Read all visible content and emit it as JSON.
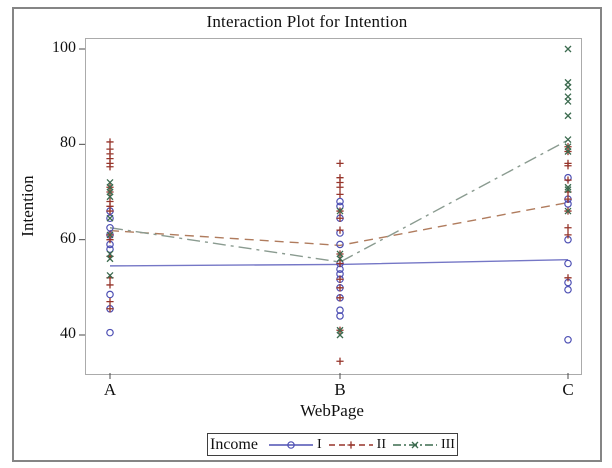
{
  "page": {
    "title": "Interaction Plot for Intention"
  },
  "axes": {
    "x": {
      "label": "WebPage",
      "categories": [
        "A",
        "B",
        "C"
      ]
    },
    "y": {
      "label": "Intention",
      "ticks": [
        40,
        60,
        80,
        100
      ]
    }
  },
  "legend": {
    "title": "Income",
    "entries": [
      {
        "label": "I"
      },
      {
        "label": "II"
      },
      {
        "label": "III"
      }
    ]
  },
  "chart_data": {
    "type": "line",
    "title": "Interaction Plot for Intention",
    "xlabel": "WebPage",
    "ylabel": "Intention",
    "categories": [
      "A",
      "B",
      "C"
    ],
    "ylim": [
      33,
      103
    ],
    "yticks": [
      40,
      60,
      80,
      100
    ],
    "grid": false,
    "legend_position": "bottom",
    "legend_title": "Income",
    "description": "Interaction plot: per-group mean lines for Income levels I/II/III across WebPage A/B/C, with raw Intention scatter points overlaid at each category.",
    "series": [
      {
        "name": "I",
        "marker": "circle",
        "line_style": "solid",
        "color": "#4E50B4",
        "line_color": "#7577C6",
        "means": [
          54.5,
          54.8,
          55.8
        ],
        "points": {
          "A": [
            66,
            64.5,
            62.5,
            61,
            59,
            58,
            48.5,
            45.5,
            40.5
          ],
          "B": [
            68,
            67,
            64.5,
            61.4,
            59,
            55,
            53.8,
            52.8,
            51.7,
            49.9,
            47.8,
            45.2,
            44
          ],
          "C": [
            73,
            68.5,
            67.5,
            60,
            55,
            51,
            49.5,
            39
          ]
        }
      },
      {
        "name": "II",
        "marker": "plus",
        "line_style": "dash",
        "color": "#96342A",
        "line_color": "#B07C5E",
        "means": [
          61.9,
          58.8,
          67.8
        ],
        "points": {
          "A": [
            80.5,
            79,
            78,
            77,
            76,
            75.3,
            71,
            70,
            68,
            67,
            66,
            61,
            60,
            56.5,
            52,
            50.5,
            47,
            45.5
          ],
          "B": [
            76,
            73,
            72,
            71,
            69.5,
            66,
            64.5,
            62,
            57,
            55,
            51.7,
            49.9,
            47.8,
            41,
            34.5
          ],
          "C": [
            79.5,
            78.5,
            76,
            75.5,
            72.5,
            70,
            68.5,
            66,
            62.5,
            61,
            52
          ]
        }
      },
      {
        "name": "III",
        "marker": "x",
        "line_style": "dashdot",
        "color": "#3C6B4F",
        "line_color": "#8A9B90",
        "means": [
          62.5,
          55.3,
          80.9
        ],
        "points": {
          "A": [
            72,
            71,
            70,
            69,
            64.5,
            61,
            57,
            56,
            52.5
          ],
          "B": [
            66,
            57,
            56,
            41,
            40
          ],
          "C": [
            100,
            93,
            92,
            90,
            89,
            86,
            81,
            79.5,
            78.5,
            71,
            70.5,
            66
          ]
        }
      }
    ]
  }
}
